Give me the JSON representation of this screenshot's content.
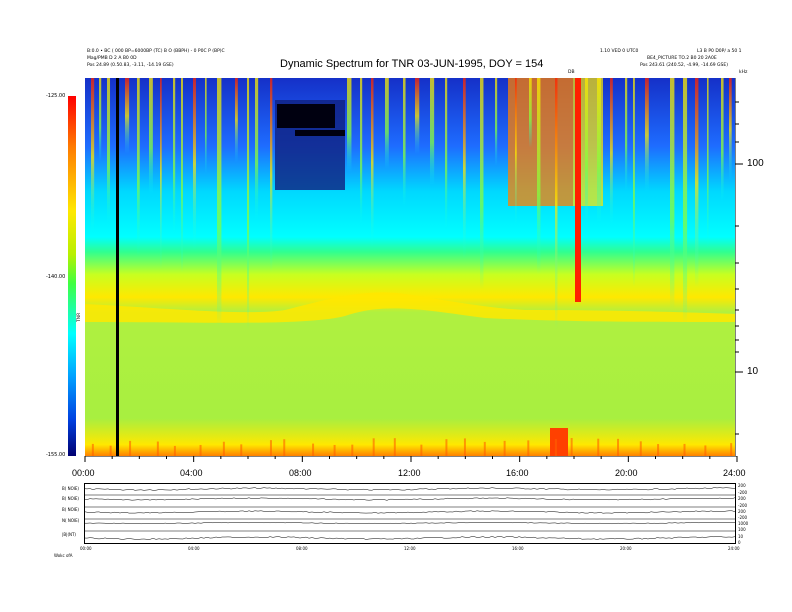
{
  "chart_data": {
    "type": "heatmap",
    "title": "Dynamic Spectrum for TNR 03-JUN-1995, DOY = 154",
    "colorbar": {
      "ticks": [
        "-125.00",
        "-140.00",
        "-155.00"
      ],
      "values": [
        -125,
        -140,
        -155
      ],
      "colors": [
        "#ff0000",
        "#ffe800",
        "#40ff40",
        "#00ffff",
        "#0040e0",
        "#000070"
      ]
    },
    "xaxis": {
      "ticks": [
        "00:00",
        "04:00",
        "08:00",
        "12:00",
        "16:00",
        "20:00",
        "24:00"
      ],
      "range_hours": [
        0,
        24
      ]
    },
    "yaxis": {
      "scale": "log",
      "ticks": [
        "100",
        "10"
      ],
      "unit_label": "kHz"
    },
    "top_left_line1": "B:0.0 • BC ( 000 BP=6000BP (TC) B O (BBPH) - 0 P0C P (BP)C",
    "top_left_line2": "Mag/PMB D 2 A B0 0D",
    "top_left_line3": "Pos   24.89 (0.50.83, -3.11, -14.19 GSE)",
    "top_right_line1": "1.10 VED 0 UTC0",
    "top_right_line2": "BE4_PICTURE TO.2 B0 20 2A0E",
    "top_right_line3": "Pos   243.61 (240.52, -4.99, -14.69 GSE)",
    "top_right_corner": "L3 B P0 D0P/ a 50 1",
    "event_label": "DB",
    "side_label": "TNR",
    "bottom_panels": {
      "labels": [
        "B( NOIE)",
        "B( NOIE)",
        "B( NOIE)",
        "N( NOIE)",
        "|B|(NT)"
      ],
      "right_ticks": [
        "200",
        "-200",
        "200",
        "-200",
        "200",
        "-200",
        "1000",
        "100",
        "10",
        "0"
      ],
      "xticks": [
        "00:00",
        "04:00",
        "08:00",
        "12:00",
        "16:00",
        "20:00",
        "24:00"
      ],
      "footer": "Wokc   ofA"
    }
  }
}
